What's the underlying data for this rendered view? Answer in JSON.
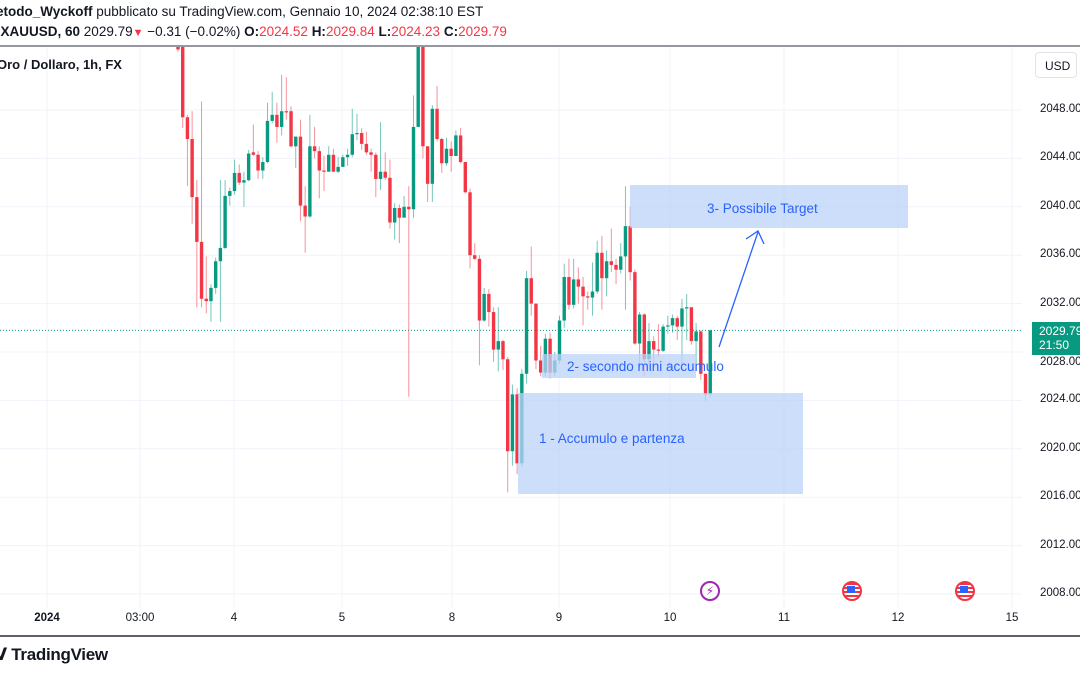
{
  "header": {
    "author": "etodo_Wyckoff",
    "published": "pubblicato su TradingView.com, Gennaio 10, 2024 02:38:10 EST",
    "symbol": ":XAUUSD, 60",
    "last": "2029.79",
    "change": "−0.31 (−0.02%)",
    "o_label": "O:",
    "o": "2024.52",
    "h_label": "H:",
    "h": "2029.84",
    "l_label": "L:",
    "l": "2024.23",
    "c_label": "C:",
    "c": "2029.79"
  },
  "legend": "Oro / Dollaro, 1h, FX",
  "currency_button": "USD",
  "price_badge": {
    "price": "2029.79",
    "countdown": "21:50"
  },
  "annotations": {
    "target": "3- Possibile Target",
    "mini": "2- secondo mini accumulo",
    "accum": "1 - Accumulo e partenza"
  },
  "events": [
    "lightning-icon",
    "us-flag-icon",
    "us-flag-icon"
  ],
  "brand": "TradingView",
  "colors": {
    "up": "#089981",
    "down": "#f23645",
    "annotation": "#2962ff",
    "box": "#bbd3f7"
  },
  "chart_data": {
    "type": "candlestick",
    "symbol": "XAUUSD",
    "interval": "1h",
    "y_ticks": [
      "2048.00",
      "2044.00",
      "2040.00",
      "2036.00",
      "2032.00",
      "2028.00",
      "2024.00",
      "2020.00",
      "2016.00",
      "2012.00",
      "2008.00"
    ],
    "x_ticks": [
      "2024",
      "03:00",
      "4",
      "5",
      "8",
      "9",
      "10",
      "11",
      "12",
      "15"
    ],
    "ylim": [
      2006,
      2054
    ],
    "grid": true,
    "last_price": 2029.79,
    "candles": [
      [
        2053.5,
        2054,
        2052.8,
        2053.0
      ],
      [
        2056,
        2057,
        2046.5,
        2047.4
      ],
      [
        2047.4,
        2047.6,
        2041.7,
        2045.6
      ],
      [
        2045.6,
        2047.9,
        2038.6,
        2040.8
      ],
      [
        2040.8,
        2042.2,
        2031.7,
        2037.1
      ],
      [
        2037.1,
        2048.7,
        2031.7,
        2032.4
      ],
      [
        2032.4,
        2035.9,
        2031.2,
        2032.2
      ],
      [
        2032.2,
        2033.6,
        2030.5,
        2033.3
      ],
      [
        2033.3,
        2035.8,
        2032.8,
        2035.5
      ],
      [
        2035.5,
        2042.2,
        2030.5,
        2036.6
      ],
      [
        2036.6,
        2042.2,
        2036.5,
        2040.9
      ],
      [
        2040.9,
        2041.6,
        2040.1,
        2041.3
      ],
      [
        2041.3,
        2043.9,
        2041.0,
        2042.8
      ],
      [
        2042.8,
        2043.5,
        2041.8,
        2042.0
      ],
      [
        2042.0,
        2042.9,
        2040.0,
        2042.2
      ],
      [
        2042.2,
        2044.7,
        2042.1,
        2044.4
      ],
      [
        2044.5,
        2046.8,
        2044.2,
        2044.3
      ],
      [
        2044.3,
        2044.6,
        2042.3,
        2043.0
      ],
      [
        2043.0,
        2044.1,
        2042.3,
        2043.7
      ],
      [
        2043.7,
        2048.6,
        2043.6,
        2047.1
      ],
      [
        2047.1,
        2049.5,
        2046.9,
        2047.6
      ],
      [
        2047.6,
        2048.6,
        2045.3,
        2046.6
      ],
      [
        2046.6,
        2050.9,
        2045.9,
        2047.9
      ],
      [
        2047.9,
        2050.7,
        2047.2,
        2047.8
      ],
      [
        2047.9,
        2048.3,
        2044.9,
        2045.0
      ],
      [
        2045.0,
        2045.8,
        2043.2,
        2045.8
      ],
      [
        2045.8,
        2047.2,
        2038.8,
        2040.1
      ],
      [
        2040.1,
        2041.7,
        2036.2,
        2039.2
      ],
      [
        2039.2,
        2047.6,
        2039.1,
        2045.0
      ],
      [
        2045.0,
        2046.6,
        2044.0,
        2044.6
      ],
      [
        2044.6,
        2045.0,
        2040.7,
        2043.0
      ],
      [
        2043.0,
        2044.2,
        2041.3,
        2042.9
      ],
      [
        2042.9,
        2045.0,
        2042.9,
        2044.3
      ],
      [
        2044.3,
        2044.8,
        2042.9,
        2042.9
      ],
      [
        2042.9,
        2044.1,
        2042.8,
        2043.3
      ],
      [
        2043.3,
        2044.3,
        2043.3,
        2044.1
      ],
      [
        2044.1,
        2044.8,
        2043.4,
        2044.3
      ],
      [
        2044.3,
        2048.1,
        2044.1,
        2046.0
      ],
      [
        2046.0,
        2047.7,
        2045.5,
        2046.1
      ],
      [
        2046.1,
        2046.5,
        2044.7,
        2045.2
      ],
      [
        2045.2,
        2046.2,
        2044.3,
        2044.5
      ],
      [
        2044.5,
        2044.8,
        2042.9,
        2044.3
      ],
      [
        2044.3,
        2044.5,
        2040.8,
        2042.3
      ],
      [
        2042.3,
        2047.0,
        2041.4,
        2042.9
      ],
      [
        2042.9,
        2044.5,
        2042.2,
        2042.4
      ],
      [
        2042.4,
        2043.9,
        2038.2,
        2038.7
      ],
      [
        2038.7,
        2040.3,
        2037.3,
        2039.9
      ],
      [
        2039.9,
        2040.2,
        2037.0,
        2039.1
      ],
      [
        2039.1,
        2040.9,
        2039.1,
        2040.0
      ],
      [
        2040.0,
        2041.7,
        2024.3,
        2039.8
      ],
      [
        2039.8,
        2049.2,
        2039.1,
        2046.6
      ],
      [
        2046.6,
        2057,
        2046.6,
        2055
      ],
      [
        2055,
        2057,
        2044.0,
        2045.0
      ],
      [
        2045.0,
        2045.0,
        2040.4,
        2041.9
      ],
      [
        2041.9,
        2048.4,
        2040.4,
        2048.1
      ],
      [
        2048.1,
        2050.0,
        2045.4,
        2045.6
      ],
      [
        2045.6,
        2045.7,
        2042.8,
        2043.6
      ],
      [
        2043.6,
        2045.7,
        2043.4,
        2044.8
      ],
      [
        2044.8,
        2045.4,
        2042.9,
        2044.2
      ],
      [
        2044.2,
        2046.3,
        2044.2,
        2045.9
      ],
      [
        2045.9,
        2046.5,
        2043.6,
        2043.7
      ],
      [
        2043.7,
        2043.7,
        2041.1,
        2041.2
      ],
      [
        2041.2,
        2041.5,
        2034.9,
        2036.0
      ],
      [
        2036.0,
        2037.0,
        2035.6,
        2035.7
      ],
      [
        2035.7,
        2036.0,
        2026.9,
        2030.6
      ],
      [
        2030.6,
        2033.3,
        2030.5,
        2032.8
      ],
      [
        2032.8,
        2033.2,
        2030.1,
        2031.3
      ],
      [
        2031.3,
        2031.7,
        2027.2,
        2028.2
      ],
      [
        2028.2,
        2031.7,
        2026.4,
        2028.9
      ],
      [
        2028.9,
        2029.0,
        2026.5,
        2027.4
      ],
      [
        2027.4,
        2027.6,
        2016.4,
        2019.8
      ],
      [
        2019.8,
        2025.3,
        2018.6,
        2024.5
      ],
      [
        2024.5,
        2025.0,
        2017.9,
        2018.8
      ],
      [
        2018.8,
        2026.6,
        2018.5,
        2026.2
      ],
      [
        2026.2,
        2034.7,
        2025.4,
        2034.1
      ],
      [
        2034.1,
        2036.7,
        2031.0,
        2032.0
      ],
      [
        2032.0,
        2032.0,
        2026.6,
        2027.3
      ],
      [
        2027.3,
        2028.5,
        2026.0,
        2026.3
      ],
      [
        2026.3,
        2029.5,
        2026.0,
        2029.1
      ],
      [
        2029.1,
        2029.6,
        2025.8,
        2026.3
      ],
      [
        2026.3,
        2028.0,
        2026.0,
        2027.3
      ],
      [
        2027.3,
        2031.0,
        2027.0,
        2030.6
      ],
      [
        2030.6,
        2035.3,
        2030.0,
        2034.2
      ],
      [
        2034.2,
        2035.7,
        2031.5,
        2031.9
      ],
      [
        2031.9,
        2035.7,
        2031.6,
        2034.0
      ],
      [
        2034.0,
        2035.0,
        2032.0,
        2033.4
      ],
      [
        2033.4,
        2034.2,
        2030.2,
        2032.6
      ],
      [
        2032.6,
        2033.0,
        2031.5,
        2032.5
      ],
      [
        2032.5,
        2035.4,
        2031.0,
        2033.0
      ],
      [
        2033.0,
        2037.2,
        2032.8,
        2036.2
      ],
      [
        2036.2,
        2037.6,
        2031.5,
        2034.1
      ],
      [
        2034.1,
        2036.4,
        2032.6,
        2035.5
      ],
      [
        2035.5,
        2038.2,
        2034.6,
        2035.2
      ],
      [
        2035.2,
        2035.7,
        2033.6,
        2034.8
      ],
      [
        2034.8,
        2037.0,
        2034.5,
        2035.9
      ],
      [
        2035.9,
        2041.7,
        2031.5,
        2038.4
      ],
      [
        2038.4,
        2040.0,
        2033.9,
        2034.6
      ],
      [
        2034.6,
        2034.8,
        2028.6,
        2028.7
      ],
      [
        2028.7,
        2031.3,
        2026.7,
        2031.1
      ],
      [
        2031.1,
        2031.2,
        2026.0,
        2027.4
      ],
      [
        2027.4,
        2030.4,
        2027.0,
        2028.9
      ],
      [
        2028.9,
        2029.3,
        2026.7,
        2028.2
      ],
      [
        2028.2,
        2030.3,
        2027.6,
        2028.1
      ],
      [
        2028.1,
        2030.3,
        2028.0,
        2030.1
      ],
      [
        2030.1,
        2031.0,
        2029.5,
        2030.2
      ],
      [
        2030.2,
        2031.1,
        2029.6,
        2030.8
      ],
      [
        2030.8,
        2031.0,
        2029.0,
        2030.1
      ],
      [
        2030.1,
        2032.4,
        2026.9,
        2031.6
      ],
      [
        2031.6,
        2032.8,
        2029.0,
        2031.7
      ],
      [
        2031.7,
        2031.7,
        2028.6,
        2028.9
      ],
      [
        2028.9,
        2030.4,
        2027.0,
        2029.7
      ],
      [
        2029.7,
        2029.8,
        2025.7,
        2026.2
      ],
      [
        2026.2,
        2026.2,
        2023.9,
        2024.5
      ],
      [
        2024.52,
        2029.84,
        2024.23,
        2029.79
      ]
    ]
  }
}
